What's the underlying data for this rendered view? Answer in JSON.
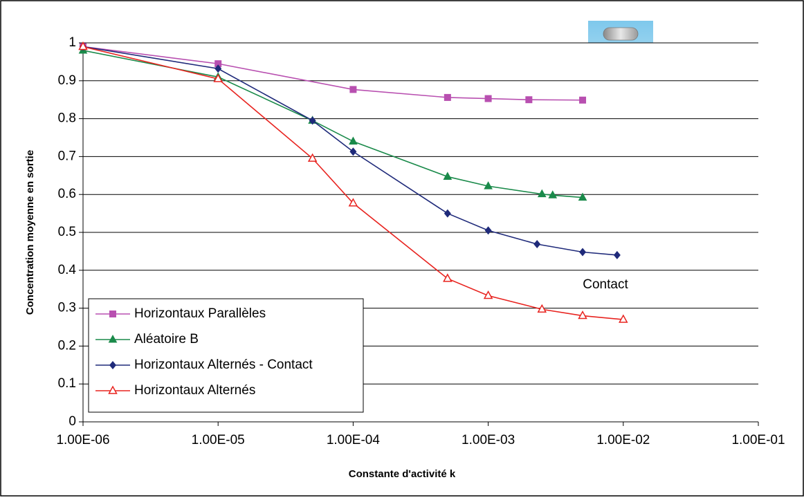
{
  "chart_data": {
    "type": "line",
    "xscale": "log",
    "grid": true,
    "legend": "lower left",
    "x_label": "Constante d'activité k",
    "y_label": "Concentration moyenne en sortie",
    "annotations": [
      "Contact"
    ],
    "xlim": [
      1e-06,
      0.1
    ],
    "xticks": [
      {
        "value": 1e-06,
        "label": "1.00E-06"
      },
      {
        "value": 1e-05,
        "label": "1.00E-05"
      },
      {
        "value": 0.0001,
        "label": "1.00E-04"
      },
      {
        "value": 0.001,
        "label": "1.00E-03"
      },
      {
        "value": 0.01,
        "label": "1.00E-02"
      },
      {
        "value": 0.1,
        "label": "1.00E-01"
      }
    ],
    "ylim": [
      0,
      1
    ],
    "yticks": [
      0,
      0.1,
      0.2,
      0.3,
      0.4,
      0.5,
      0.6,
      0.7,
      0.8,
      0.9,
      1
    ],
    "series": [
      {
        "name": "Horizontaux Parallèles",
        "color": "#b84fb0",
        "marker": "square",
        "x": [
          1e-06,
          1e-05,
          0.0001,
          0.0005,
          0.001,
          0.002,
          0.005
        ],
        "values": [
          0.99,
          0.945,
          0.877,
          0.856,
          0.853,
          0.85,
          0.849
        ]
      },
      {
        "name": "Aléatoire B",
        "color": "#1a8a4a",
        "marker": "triangle",
        "x": [
          1e-06,
          1e-05,
          5e-05,
          0.0001,
          0.0005,
          0.001,
          0.0025,
          0.003,
          0.005
        ],
        "values": [
          0.98,
          0.91,
          0.795,
          0.74,
          0.647,
          0.622,
          0.601,
          0.598,
          0.592
        ]
      },
      {
        "name": "Horizontaux Alternés - Contact",
        "color": "#1f2a7a",
        "marker": "diamond",
        "x": [
          1e-06,
          1e-05,
          5e-05,
          0.0001,
          0.0005,
          0.001,
          0.0023,
          0.005,
          0.009
        ],
        "values": [
          0.99,
          0.932,
          0.795,
          0.713,
          0.55,
          0.505,
          0.469,
          0.448,
          0.44
        ]
      },
      {
        "name": "Horizontaux Alternés",
        "color": "#e8231f",
        "marker": "open-triangle",
        "x": [
          1e-06,
          1e-05,
          5e-05,
          0.0001,
          0.0005,
          0.001,
          0.0025,
          0.005,
          0.01
        ],
        "values": [
          0.99,
          0.905,
          0.695,
          0.577,
          0.378,
          0.333,
          0.297,
          0.28,
          0.27
        ]
      }
    ]
  }
}
